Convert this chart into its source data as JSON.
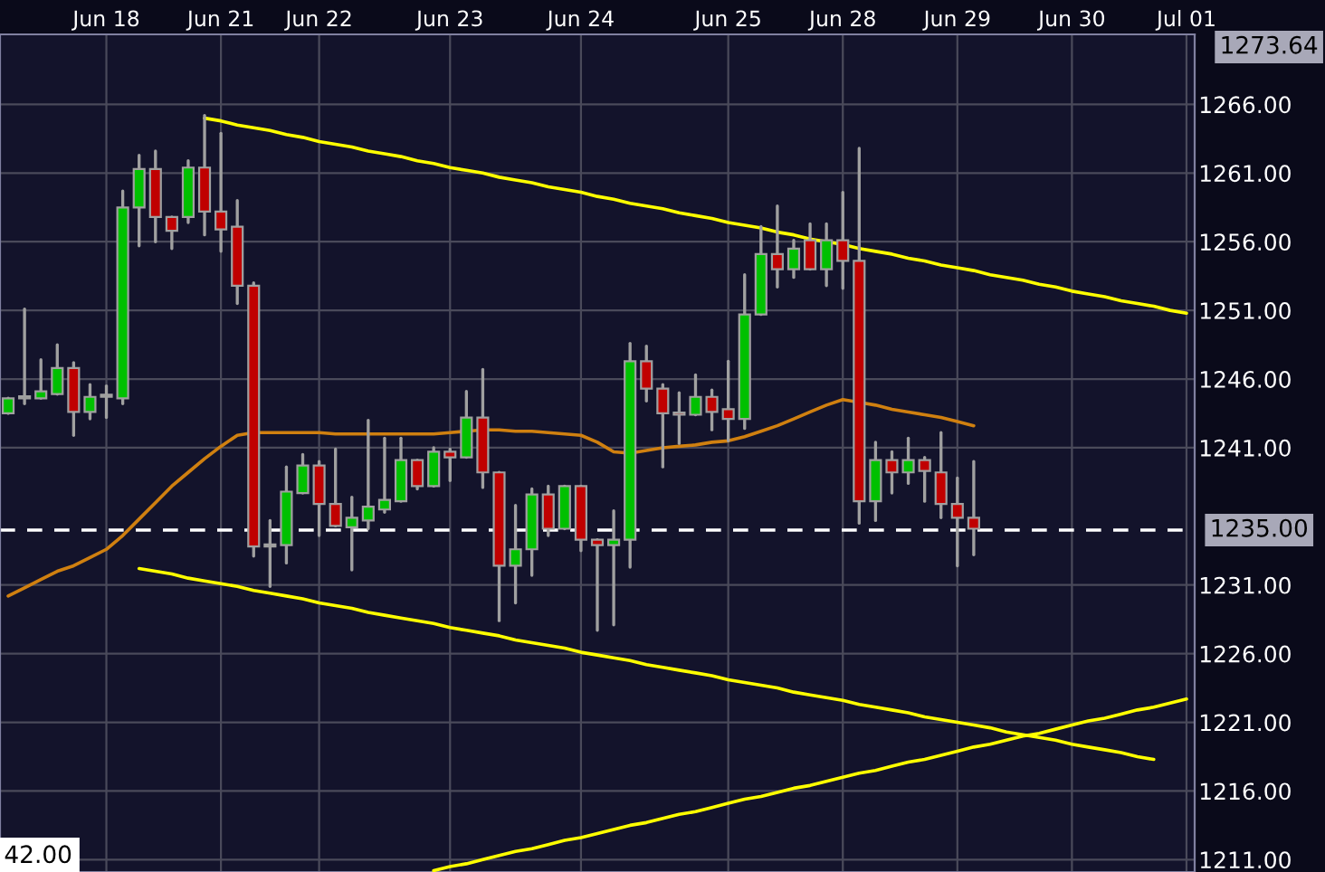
{
  "chart_data": {
    "type": "candlestick",
    "categories": [
      null,
      null,
      null,
      null,
      null,
      null,
      "Jun 18",
      null,
      null,
      null,
      null,
      null,
      null,
      "Jun 21",
      null,
      null,
      null,
      null,
      null,
      "Jun 22",
      null,
      null,
      null,
      null,
      null,
      null,
      null,
      "Jun 23",
      null,
      null,
      null,
      null,
      null,
      null,
      null,
      "Jun 24",
      null,
      null,
      null,
      null,
      null,
      null,
      null,
      null,
      "Jun 25",
      null,
      null,
      null,
      null,
      null,
      null,
      "Jun 28",
      null,
      null,
      null,
      null,
      null,
      null,
      "Jun 29",
      null,
      null,
      null,
      null,
      null,
      null,
      "Jun 30",
      null,
      null,
      null,
      null,
      null,
      null,
      "Jul 01"
    ],
    "ohlc": [
      [
        1243.5,
        1244.6,
        1243.5,
        1244.6
      ],
      [
        1244.6,
        1251.1,
        1244.2,
        1244.6
      ],
      [
        1244.6,
        1247.4,
        1244.6,
        1245.1
      ],
      [
        1244.9,
        1248.5,
        1244.9,
        1246.8
      ],
      [
        1246.8,
        1247.2,
        1241.9,
        1243.6
      ],
      [
        1243.6,
        1245.6,
        1243.1,
        1244.7
      ],
      [
        1244.7,
        1245.5,
        1243.2,
        1244.7
      ],
      [
        1244.6,
        1259.7,
        1244.2,
        1258.5
      ],
      [
        1258.5,
        1262.3,
        1255.7,
        1261.3
      ],
      [
        1261.3,
        1262.6,
        1256.0,
        1257.8
      ],
      [
        1257.8,
        1257.8,
        1255.5,
        1256.8
      ],
      [
        1257.8,
        1261.9,
        1257.4,
        1261.4
      ],
      [
        1261.4,
        1265.2,
        1256.5,
        1258.2
      ],
      [
        1258.2,
        1263.9,
        1255.3,
        1256.9
      ],
      [
        1257.1,
        1259.0,
        1251.5,
        1252.8
      ],
      [
        1252.8,
        1253.0,
        1233.1,
        1233.8
      ],
      [
        1233.8,
        1235.7,
        1230.9,
        1233.8
      ],
      [
        1233.9,
        1239.6,
        1232.6,
        1237.8
      ],
      [
        1237.7,
        1240.5,
        1237.7,
        1239.7
      ],
      [
        1239.7,
        1240.0,
        1234.6,
        1236.9
      ],
      [
        1236.9,
        1240.9,
        1235.3,
        1235.3
      ],
      [
        1235.2,
        1237.4,
        1232.1,
        1235.9
      ],
      [
        1235.7,
        1243.0,
        1235.1,
        1236.7
      ],
      [
        1236.5,
        1241.7,
        1236.3,
        1237.2
      ],
      [
        1237.1,
        1241.7,
        1237.1,
        1240.1
      ],
      [
        1240.1,
        1240.1,
        1238.0,
        1238.2
      ],
      [
        1238.2,
        1241.0,
        1238.2,
        1240.7
      ],
      [
        1240.7,
        1240.9,
        1238.6,
        1240.3
      ],
      [
        1240.3,
        1245.1,
        1240.3,
        1243.2
      ],
      [
        1243.2,
        1246.7,
        1238.1,
        1239.2
      ],
      [
        1239.2,
        1239.2,
        1228.4,
        1232.4
      ],
      [
        1232.4,
        1236.8,
        1229.7,
        1233.6
      ],
      [
        1233.6,
        1238.0,
        1231.7,
        1237.6
      ],
      [
        1237.6,
        1238.2,
        1234.6,
        1235.1
      ],
      [
        1235.1,
        1238.2,
        1235.1,
        1238.2
      ],
      [
        1238.2,
        1238.2,
        1233.5,
        1234.3
      ],
      [
        1234.3,
        1234.3,
        1227.7,
        1233.9
      ],
      [
        1233.9,
        1236.4,
        1228.1,
        1234.3
      ],
      [
        1234.3,
        1248.6,
        1232.3,
        1247.3
      ],
      [
        1247.3,
        1248.4,
        1244.4,
        1245.3
      ],
      [
        1245.3,
        1245.6,
        1239.6,
        1243.5
      ],
      [
        1243.5,
        1245.0,
        1241.3,
        1243.4
      ],
      [
        1243.4,
        1246.3,
        1243.4,
        1244.7
      ],
      [
        1244.7,
        1245.2,
        1242.3,
        1243.6
      ],
      [
        1243.8,
        1247.3,
        1241.5,
        1243.1
      ],
      [
        1243.1,
        1253.6,
        1242.4,
        1250.7
      ],
      [
        1250.7,
        1257.1,
        1250.7,
        1255.1
      ],
      [
        1255.1,
        1258.6,
        1252.7,
        1254.0
      ],
      [
        1254.0,
        1256.1,
        1253.4,
        1255.5
      ],
      [
        1256.1,
        1257.3,
        1254.0,
        1254.0
      ],
      [
        1254.0,
        1257.3,
        1252.8,
        1256.1
      ],
      [
        1256.1,
        1259.6,
        1252.6,
        1254.6
      ],
      [
        1254.6,
        1262.8,
        1235.5,
        1237.1
      ],
      [
        1237.1,
        1241.4,
        1235.7,
        1240.1
      ],
      [
        1240.1,
        1240.7,
        1237.7,
        1239.2
      ],
      [
        1239.2,
        1241.7,
        1238.4,
        1240.1
      ],
      [
        1240.1,
        1240.3,
        1237.1,
        1239.3
      ],
      [
        1239.2,
        1242.1,
        1235.9,
        1236.9
      ],
      [
        1236.9,
        1238.8,
        1232.4,
        1235.9
      ],
      [
        1235.9,
        1240.0,
        1233.2,
        1235.1
      ],
      null,
      null,
      null,
      null,
      null,
      null,
      null,
      null,
      null,
      null,
      null,
      null,
      null
    ],
    "series": [
      {
        "type": "line",
        "color": "#d08010",
        "values": [
          1230.2,
          1230.8,
          1231.4,
          1232.0,
          1232.4,
          1233.0,
          1233.6,
          1234.6,
          1235.8,
          1237.0,
          1238.2,
          1239.2,
          1240.2,
          1241.1,
          1241.9,
          1242.1,
          1242.1,
          1242.1,
          1242.1,
          1242.1,
          1242.0,
          1242.0,
          1242.0,
          1242.0,
          1242.0,
          1242.0,
          1242.0,
          1242.1,
          1242.2,
          1242.3,
          1242.3,
          1242.2,
          1242.2,
          1242.1,
          1242.0,
          1241.9,
          1241.4,
          1240.7,
          1240.6,
          1240.8,
          1241.0,
          1241.1,
          1241.2,
          1241.4,
          1241.5,
          1241.8,
          1242.2,
          1242.6,
          1243.1,
          1243.6,
          1244.1,
          1244.5,
          1244.3,
          1244.1,
          1243.8,
          1243.6,
          1243.4,
          1243.2,
          1242.9,
          1242.6,
          null,
          null,
          null,
          null,
          null,
          null,
          null,
          null,
          null,
          null,
          null,
          null,
          null
        ]
      },
      {
        "type": "line",
        "color": "#ffff00",
        "values": [
          null,
          null,
          null,
          null,
          null,
          null,
          null,
          null,
          null,
          null,
          null,
          null,
          1265.0,
          1264.8,
          1264.5,
          1264.3,
          1264.1,
          1263.8,
          1263.6,
          1263.3,
          1263.1,
          1262.9,
          1262.6,
          1262.4,
          1262.2,
          1261.9,
          1261.7,
          1261.4,
          1261.2,
          1261.0,
          1260.7,
          1260.5,
          1260.3,
          1260.0,
          1259.8,
          1259.6,
          1259.3,
          1259.1,
          1258.8,
          1258.6,
          1258.4,
          1258.1,
          1257.9,
          1257.7,
          1257.4,
          1257.2,
          1257.0,
          1256.7,
          1256.5,
          1256.2,
          1256.0,
          1255.8,
          1255.5,
          1255.3,
          1255.1,
          1254.8,
          1254.6,
          1254.3,
          1254.1,
          1253.9,
          1253.6,
          1253.4,
          1253.2,
          1252.9,
          1252.7,
          1252.4,
          1252.2,
          1252.0,
          1251.7,
          1251.5,
          1251.3,
          1251.0,
          1250.8
        ]
      },
      {
        "type": "line",
        "color": "#ffff00",
        "values": [
          null,
          null,
          null,
          null,
          null,
          null,
          null,
          null,
          1232.2,
          1232.0,
          1231.8,
          1231.5,
          1231.3,
          1231.1,
          1230.9,
          1230.6,
          1230.4,
          1230.2,
          1230.0,
          1229.7,
          1229.5,
          1229.3,
          1229.0,
          1228.8,
          1228.6,
          1228.4,
          1228.2,
          1227.9,
          1227.7,
          1227.5,
          1227.3,
          1227.0,
          1226.8,
          1226.6,
          1226.4,
          1226.1,
          1225.9,
          1225.7,
          1225.5,
          1225.2,
          1225.0,
          1224.8,
          1224.6,
          1224.4,
          1224.1,
          1223.9,
          1223.7,
          1223.5,
          1223.2,
          1223.0,
          1222.8,
          1222.6,
          1222.3,
          1222.1,
          1221.9,
          1221.7,
          1221.4,
          1221.2,
          1221.0,
          1220.8,
          1220.6,
          1220.3,
          1220.1,
          1219.9,
          1219.7,
          1219.4,
          1219.2,
          1219.0,
          1218.8,
          1218.5,
          1218.3,
          null,
          null
        ]
      },
      {
        "type": "line",
        "color": "#ffff00",
        "values": [
          null,
          null,
          null,
          null,
          null,
          null,
          null,
          null,
          null,
          null,
          null,
          null,
          null,
          null,
          null,
          null,
          null,
          null,
          null,
          null,
          null,
          null,
          null,
          null,
          null,
          null,
          1210.2,
          1210.5,
          1210.7,
          1211.0,
          1211.3,
          1211.6,
          1211.8,
          1212.1,
          1212.4,
          1212.6,
          1212.9,
          1213.2,
          1213.5,
          1213.7,
          1214.0,
          1214.3,
          1214.5,
          1214.8,
          1215.1,
          1215.4,
          1215.6,
          1215.9,
          1216.2,
          1216.4,
          1216.7,
          1217.0,
          1217.3,
          1217.5,
          1217.8,
          1218.1,
          1218.3,
          1218.6,
          1218.9,
          1219.2,
          1219.4,
          1219.7,
          1220.0,
          1220.2,
          1220.5,
          1220.8,
          1221.1,
          1221.3,
          1221.6,
          1221.9,
          1222.1,
          1222.4,
          1222.7
        ]
      }
    ],
    "ylim": [
      1210.1,
      1271.1
    ],
    "yticks": [
      {
        "value": 1211,
        "label": "1211.00"
      },
      {
        "value": 1216,
        "label": "1216.00"
      },
      {
        "value": 1221,
        "label": "1221.00"
      },
      {
        "value": 1226,
        "label": "1226.00"
      },
      {
        "value": 1231,
        "label": "1231.00"
      },
      {
        "value": 1241,
        "label": "1241.00"
      },
      {
        "value": 1246,
        "label": "1246.00"
      },
      {
        "value": 1251,
        "label": "1251.00"
      },
      {
        "value": 1256,
        "label": "1256.00"
      },
      {
        "value": 1261,
        "label": "1261.00"
      },
      {
        "value": 1266,
        "label": "1266.00"
      }
    ],
    "ref_lines": [
      {
        "axis": "y",
        "value": 1235,
        "label": "1235.00",
        "color": "#ffffff",
        "line_style": "dashed"
      }
    ],
    "annotations": [
      "1273.64",
      "42.00"
    ],
    "grid": true
  }
}
